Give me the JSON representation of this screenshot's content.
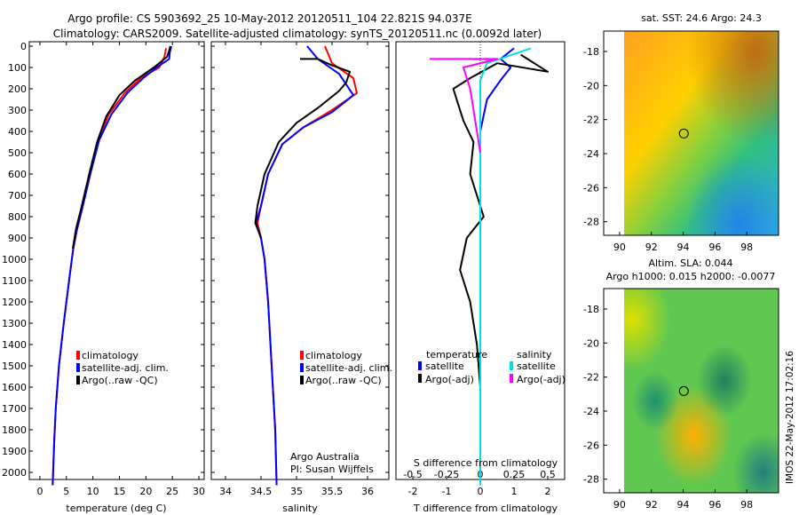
{
  "header": {
    "title_line1": "Argo profile: CS 5903692_25 10-May-2012 20120511_104 22.821S 94.037E",
    "title_line2": "Climatology: CARS2009. Satellite-adjusted climatology: synTS_20120511.nc (0.0092d later)"
  },
  "colors": {
    "climatology": "#ff0000",
    "satellite": "#0000ff",
    "argo": "#000000",
    "sal_sat": "#00e0e0",
    "sal_argo": "#ff00ff"
  },
  "chart_data": [
    {
      "id": "temperature",
      "type": "line",
      "xlabel": "temperature (deg C)",
      "ylabel": "",
      "xlim": [
        -2,
        31
      ],
      "ylim": [
        0,
        2060
      ],
      "xticks": [
        0,
        5,
        10,
        15,
        20,
        25,
        30
      ],
      "yticks": [
        0,
        100,
        200,
        300,
        400,
        500,
        600,
        700,
        800,
        900,
        1000,
        1100,
        1200,
        1300,
        1400,
        1500,
        1600,
        1700,
        1800,
        1900,
        2000
      ],
      "legend": [
        "climatology",
        "satellite-adj. clim.",
        "Argo(..raw -QC)"
      ],
      "legend_position": "lower-center",
      "series": [
        {
          "name": "climatology",
          "color": "#ff0000",
          "points": [
            [
              23.8,
              10
            ],
            [
              23.5,
              50
            ],
            [
              22.5,
              100
            ],
            [
              19,
              150
            ],
            [
              16,
              220
            ],
            [
              13,
              320
            ],
            [
              11,
              440
            ],
            [
              9.5,
              600
            ],
            [
              8,
              760
            ],
            [
              7,
              860
            ],
            [
              6.3,
              950
            ],
            [
              5.5,
              1100
            ],
            [
              4.5,
              1300
            ],
            [
              3.6,
              1500
            ],
            [
              3,
              1700
            ],
            [
              2.7,
              1850
            ],
            [
              2.4,
              2060
            ]
          ]
        },
        {
          "name": "satellite-adj. clim.",
          "color": "#0000ff",
          "points": [
            [
              24.8,
              0
            ],
            [
              24.5,
              30
            ],
            [
              24.4,
              60
            ],
            [
              22,
              100
            ],
            [
              19.5,
              150
            ],
            [
              16.5,
              220
            ],
            [
              13.5,
              320
            ],
            [
              11.2,
              440
            ],
            [
              9.5,
              600
            ],
            [
              8,
              760
            ],
            [
              7,
              860
            ],
            [
              6.3,
              950
            ],
            [
              5.5,
              1100
            ],
            [
              4.5,
              1300
            ],
            [
              3.6,
              1500
            ],
            [
              3,
              1700
            ],
            [
              2.7,
              1850
            ],
            [
              2.4,
              2060
            ]
          ]
        },
        {
          "name": "Argo(..raw -QC)",
          "color": "#000000",
          "points": [
            [
              24.6,
              0
            ],
            [
              24.4,
              20
            ],
            [
              24,
              50
            ],
            [
              21.5,
              100
            ],
            [
              18,
              160
            ],
            [
              15,
              230
            ],
            [
              12.5,
              330
            ],
            [
              10.8,
              450
            ],
            [
              9.3,
              600
            ],
            [
              7.8,
              760
            ],
            [
              6.8,
              860
            ],
            [
              6.2,
              950
            ]
          ]
        }
      ]
    },
    {
      "id": "salinity",
      "type": "line",
      "xlabel": "salinity",
      "ylabel": "",
      "xlim": [
        33.8,
        36.3
      ],
      "ylim": [
        0,
        2060
      ],
      "xticks": [
        34,
        34.5,
        35,
        35.5,
        36
      ],
      "yticks": [
        0,
        100,
        200,
        300,
        400,
        500,
        600,
        700,
        800,
        900,
        1000,
        1100,
        1200,
        1300,
        1400,
        1500,
        1600,
        1700,
        1800,
        1900,
        2000
      ],
      "legend": [
        "climatology",
        "satellite-adj. clim.",
        "Argo(..raw -QC)"
      ],
      "legend_position": "lower-center",
      "annotations": [
        "Argo Australia",
        "PI: Susan Wijffels"
      ],
      "series": [
        {
          "name": "climatology",
          "color": "#ff0000",
          "points": [
            [
              35.4,
              0
            ],
            [
              35.5,
              80
            ],
            [
              35.8,
              150
            ],
            [
              35.85,
              220
            ],
            [
              35.5,
              300
            ],
            [
              35.1,
              380
            ],
            [
              34.8,
              460
            ],
            [
              34.6,
              600
            ],
            [
              34.5,
              750
            ],
            [
              34.45,
              830
            ],
            [
              34.5,
              900
            ],
            [
              34.55,
              1000
            ],
            [
              34.6,
              1200
            ],
            [
              34.65,
              1500
            ],
            [
              34.7,
              1800
            ],
            [
              34.72,
              2060
            ]
          ]
        },
        {
          "name": "satellite-adj. clim.",
          "color": "#0000ff",
          "points": [
            [
              35.15,
              0
            ],
            [
              35.3,
              60
            ],
            [
              35.6,
              130
            ],
            [
              35.8,
              230
            ],
            [
              35.5,
              310
            ],
            [
              35.1,
              380
            ],
            [
              34.8,
              460
            ],
            [
              34.6,
              600
            ],
            [
              34.5,
              750
            ],
            [
              34.43,
              830
            ],
            [
              34.5,
              900
            ],
            [
              34.55,
              1000
            ],
            [
              34.6,
              1200
            ],
            [
              34.65,
              1500
            ],
            [
              34.7,
              1800
            ],
            [
              34.72,
              2060
            ]
          ]
        },
        {
          "name": "Argo(..raw -QC)",
          "color": "#000000",
          "points": [
            [
              35.05,
              60
            ],
            [
              35.3,
              60
            ],
            [
              35.5,
              90
            ],
            [
              35.75,
              120
            ],
            [
              35.7,
              170
            ],
            [
              35.6,
              210
            ],
            [
              35.3,
              290
            ],
            [
              35.0,
              360
            ],
            [
              34.75,
              450
            ],
            [
              34.55,
              600
            ],
            [
              34.45,
              750
            ],
            [
              34.42,
              830
            ],
            [
              34.5,
              900
            ]
          ]
        }
      ]
    },
    {
      "id": "difference",
      "type": "line",
      "xlabel": "T difference from climatology",
      "xlabel_top": "S difference from climatology",
      "xlim": [
        -2.5,
        2.5
      ],
      "ylim": [
        0,
        2060
      ],
      "xticks_t": [
        -2,
        -1,
        0,
        1,
        2
      ],
      "xticks_s": [
        "-0.5",
        "-0.25",
        "0",
        "0.25",
        "0.5"
      ],
      "legend_titles": [
        "temperature",
        "salinity"
      ],
      "legend_temperature": [
        "satellite",
        "Argo(-adj)"
      ],
      "legend_salinity": [
        "satellite",
        "Argo(-adj)"
      ],
      "series": [
        {
          "name": "temperature satellite",
          "color": "#0000ff",
          "points": [
            [
              1.0,
              10
            ],
            [
              0.6,
              60
            ],
            [
              0.9,
              100
            ],
            [
              0.6,
              160
            ],
            [
              0.2,
              250
            ],
            [
              0.0,
              400
            ],
            [
              0.0,
              2060
            ]
          ]
        },
        {
          "name": "temperature Argo(-adj)",
          "color": "#000000",
          "points": [
            [
              1.2,
              40
            ],
            [
              2.0,
              120
            ],
            [
              0.5,
              80
            ],
            [
              -0.3,
              150
            ],
            [
              -0.8,
              200
            ],
            [
              -0.5,
              350
            ],
            [
              -0.2,
              450
            ],
            [
              -0.3,
              600
            ],
            [
              0.1,
              800
            ],
            [
              -0.4,
              900
            ],
            [
              -0.6,
              1050
            ],
            [
              -0.3,
              1200
            ],
            [
              -0.1,
              1400
            ],
            [
              0.0,
              1600
            ]
          ]
        },
        {
          "name": "salinity satellite",
          "color": "#00e0e0",
          "points": [
            [
              1.5,
              10
            ],
            [
              0.2,
              80
            ],
            [
              0.0,
              160
            ],
            [
              0.0,
              2060
            ]
          ]
        },
        {
          "name": "salinity Argo(-adj)",
          "color": "#ff00ff",
          "points": [
            [
              -1.5,
              60
            ],
            [
              0.5,
              60
            ],
            [
              -0.5,
              100
            ],
            [
              -0.3,
              200
            ],
            [
              -0.1,
              400
            ],
            [
              0.0,
              500
            ]
          ]
        }
      ]
    },
    {
      "id": "sst_map",
      "type": "heatmap",
      "title": "sat. SST: 24.6 Argo: 24.3",
      "xticks": [
        90,
        92,
        94,
        96,
        98
      ],
      "yticks": [
        -18,
        -20,
        -22,
        -24,
        -26,
        -28
      ],
      "xlim": [
        89,
        100
      ],
      "ylim": [
        -28.8,
        -16.8
      ],
      "marker": [
        94.04,
        -22.82
      ]
    },
    {
      "id": "sla_map",
      "type": "heatmap",
      "title": "Altim. SLA: 0.044",
      "subtitle": "Argo h1000: 0.015 h2000: -0.0077",
      "xticks": [
        90,
        92,
        94,
        96,
        98
      ],
      "yticks": [
        -18,
        -20,
        -22,
        -24,
        -26,
        -28
      ],
      "xlim": [
        89,
        100
      ],
      "ylim": [
        -28.8,
        -16.8
      ],
      "marker": [
        94.04,
        -22.82
      ]
    }
  ],
  "side_stamp": "IMOS 22-May-2012 17:02:16"
}
